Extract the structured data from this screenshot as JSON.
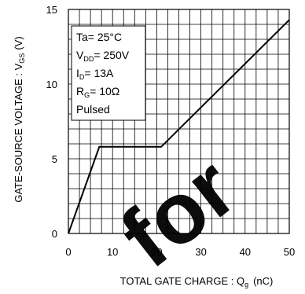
{
  "chart_data": {
    "type": "line",
    "xlabel": {
      "main": "TOTAL GATE CHARGE : Q",
      "sub": "g",
      "unit": "(nC)"
    },
    "ylabel": {
      "main": "GATE-SOURCE VOLTAGE : V",
      "sub": "GS",
      "unit": "(V)"
    },
    "xlim": [
      0,
      50
    ],
    "ylim": [
      0,
      15
    ],
    "x_ticks": [
      0,
      10,
      20,
      30,
      40,
      50
    ],
    "y_ticks": [
      0,
      5,
      10,
      15
    ],
    "x_minor_step": 2.5,
    "y_minor_step": 1,
    "grid": true,
    "series": [
      {
        "x": [
          0,
          7,
          21,
          50
        ],
        "y": [
          0,
          5.8,
          5.8,
          14.3
        ]
      }
    ],
    "conditions_box": {
      "placement": "top-left",
      "lines": [
        {
          "main": "Ta= 25°C"
        },
        {
          "main": "V",
          "sub": "DD",
          "after": "= 250V"
        },
        {
          "main": "I",
          "sub": "D",
          "after": "= 13A"
        },
        {
          "main": "R",
          "sub": "G",
          "after": "= 10Ω"
        },
        {
          "main": "Pulsed"
        }
      ]
    },
    "watermark": {
      "text": "for",
      "color": "#000000"
    }
  },
  "colors": {
    "line": "#000000",
    "grid": "#000000",
    "background": "#ffffff"
  }
}
